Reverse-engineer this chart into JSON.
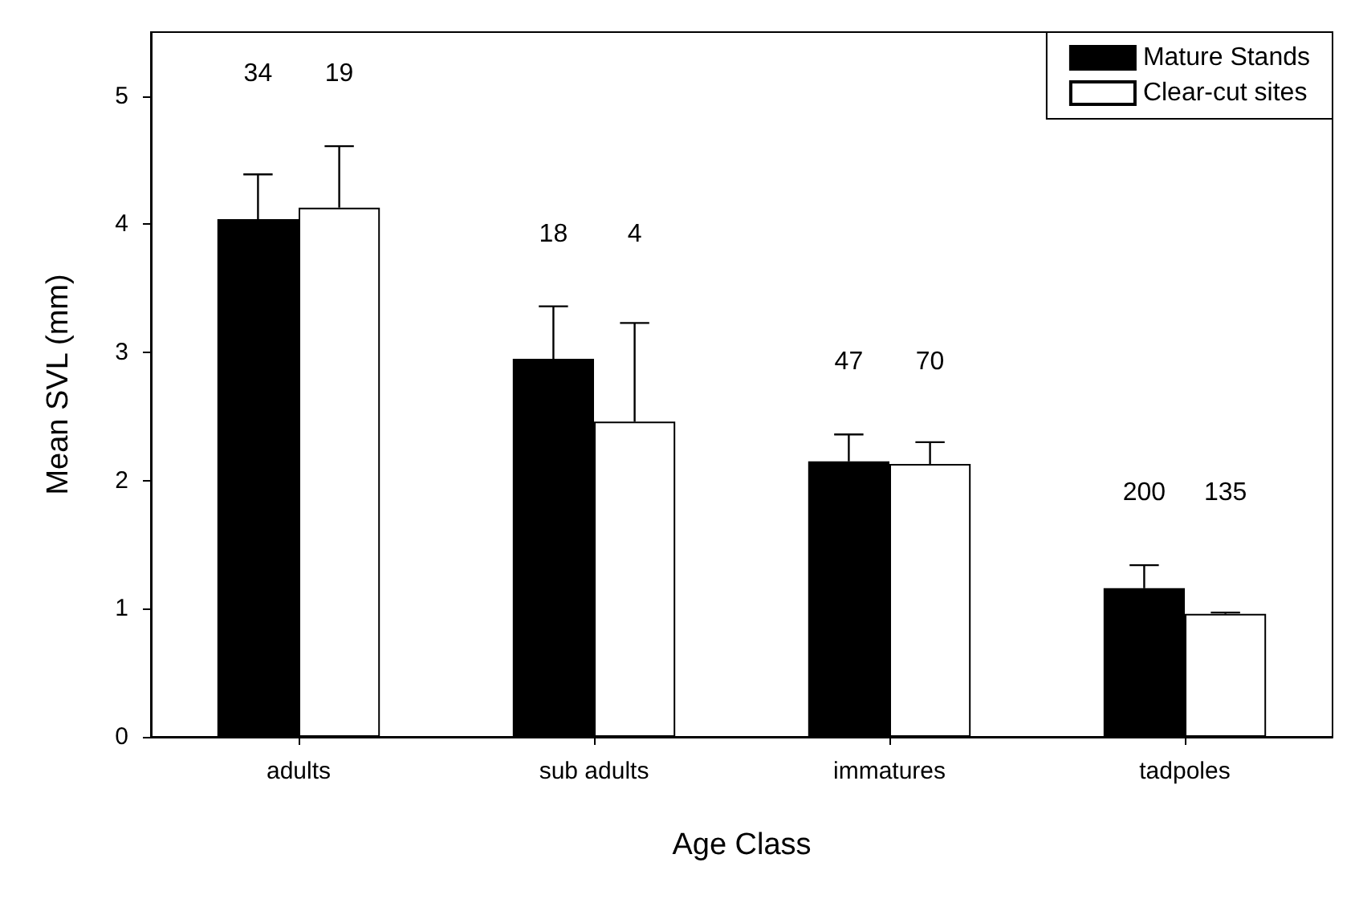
{
  "chart_data": {
    "type": "bar",
    "xlabel": "Age Class",
    "ylabel": "Mean SVL (mm)",
    "categories": [
      "adults",
      "sub adults",
      "immatures",
      "tadpoles"
    ],
    "series": [
      {
        "name": "Mature Stands",
        "color": "#000000",
        "values": [
          4.04,
          2.95,
          2.15,
          1.16
        ],
        "errors": [
          0.35,
          0.41,
          0.21,
          0.18
        ]
      },
      {
        "name": "Clear-cut sites",
        "color": "#ffffff",
        "values": [
          4.13,
          2.46,
          2.13,
          0.96
        ],
        "errors": [
          0.48,
          0.77,
          0.17,
          0.01
        ]
      }
    ],
    "ylim": [
      0,
      5.5
    ],
    "yticks": [
      0,
      1,
      2,
      3,
      4,
      5
    ],
    "grid": false,
    "legend": "top right",
    "annotations": [
      "34",
      "19",
      "18",
      "4",
      "47",
      "70",
      "200",
      "135"
    ]
  }
}
